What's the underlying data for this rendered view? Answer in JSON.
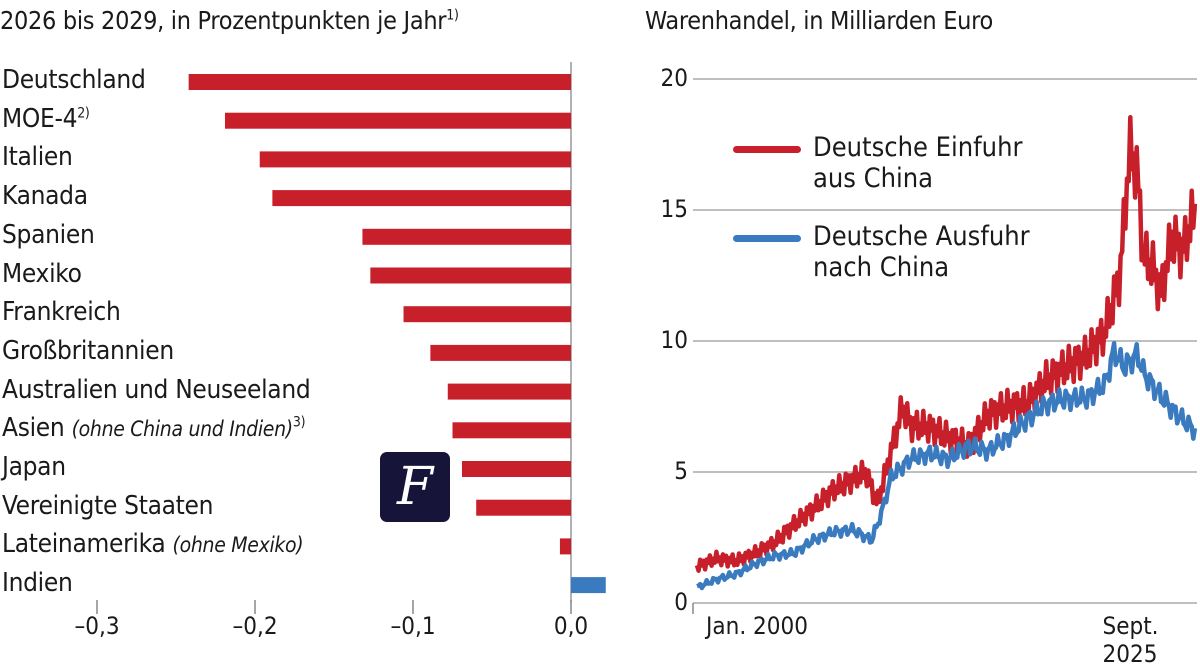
{
  "left_chart": {
    "title": "2026 bis 2029, in Prozentpunkten je Jahr",
    "title_footnote": "1)",
    "type": "bar",
    "orientation": "horizontal",
    "negative_color": "#c8202b",
    "positive_color": "#3a7abf",
    "xlim": [
      -0.3,
      0.03
    ],
    "ticks": [
      -0.3,
      -0.2,
      -0.1,
      0.0
    ],
    "tick_labels": [
      "–0,3",
      "–0,2",
      "–0,1",
      "0,0"
    ],
    "rows": [
      {
        "label": "Deutschland",
        "note": "",
        "footnote": "",
        "value": -0.242
      },
      {
        "label": "MOE-4",
        "note": "",
        "footnote": "2)",
        "value": -0.219
      },
      {
        "label": "Italien",
        "note": "",
        "footnote": "",
        "value": -0.197
      },
      {
        "label": "Kanada",
        "note": "",
        "footnote": "",
        "value": -0.189
      },
      {
        "label": "Spanien",
        "note": "",
        "footnote": "",
        "value": -0.132
      },
      {
        "label": "Mexiko",
        "note": "",
        "footnote": "",
        "value": -0.127
      },
      {
        "label": "Frankreich",
        "note": "",
        "footnote": "",
        "value": -0.106
      },
      {
        "label": "Großbritannien",
        "note": "",
        "footnote": "",
        "value": -0.089
      },
      {
        "label": "Australien und Neuseeland",
        "note": "",
        "footnote": "",
        "value": -0.078
      },
      {
        "label": "Asien",
        "note": "(ohne China und Indien)",
        "footnote": "3)",
        "value": -0.075
      },
      {
        "label": "Japan",
        "note": "",
        "footnote": "",
        "value": -0.069
      },
      {
        "label": "Vereinigte Staaten",
        "note": "",
        "footnote": "",
        "value": -0.06
      },
      {
        "label": "Lateinamerika",
        "note": "(ohne Mexiko)",
        "footnote": "",
        "value": -0.007
      },
      {
        "label": "Indien",
        "note": "",
        "footnote": "",
        "value": 0.022
      }
    ]
  },
  "logo": {
    "letter": "F"
  },
  "chart_data": {
    "type": "line",
    "title": "Warenhandel, in Milliarden Euro",
    "ylim": [
      0,
      20
    ],
    "yticks": [
      0,
      5,
      10,
      15,
      20
    ],
    "xlim": [
      2000.0,
      2025.67
    ],
    "xtick_labels": [
      "Jan. 2000",
      "Sept. 2025"
    ],
    "grid": true,
    "legend_position": "top-left",
    "series": [
      {
        "name_line1": "Deutsche Einfuhr",
        "name_line2": "aus China",
        "color": "#c8202b",
        "x": [
          2000,
          2001,
          2002,
          2003,
          2004,
          2005,
          2006,
          2007,
          2008,
          2008.7,
          2009.3,
          2009.8,
          2010.6,
          2011,
          2012,
          2013,
          2014,
          2015,
          2016,
          2017,
          2018,
          2019,
          2020,
          2021,
          2021.8,
          2022.3,
          2022.7,
          2023.0,
          2023.5,
          2023.9,
          2024.5,
          2025,
          2025.67
        ],
        "y": [
          1.4,
          1.7,
          1.6,
          1.9,
          2.3,
          3.0,
          3.6,
          4.3,
          4.7,
          5.0,
          3.8,
          5.2,
          7.5,
          6.8,
          6.7,
          6.3,
          6.0,
          7.2,
          7.5,
          7.6,
          8.5,
          9.0,
          9.4,
          10.3,
          12.5,
          17.3,
          16.4,
          13.3,
          12.8,
          11.8,
          14.0,
          13.4,
          15.0
        ]
      },
      {
        "name_line1": "Deutsche Ausfuhr",
        "name_line2": "nach China",
        "color": "#3a7abf",
        "x": [
          2000,
          2001,
          2002,
          2003,
          2004,
          2005,
          2006,
          2007,
          2008,
          2009,
          2009.5,
          2010,
          2011,
          2012,
          2013,
          2014,
          2015,
          2016,
          2017,
          2018,
          2019,
          2020,
          2021,
          2021.5,
          2022,
          2022.7,
          2023,
          2024,
          2025,
          2025.67
        ],
        "y": [
          0.6,
          0.9,
          1.1,
          1.5,
          1.8,
          1.9,
          2.4,
          2.7,
          2.8,
          2.4,
          3.4,
          4.8,
          5.5,
          5.7,
          5.5,
          6.0,
          5.8,
          6.3,
          7.0,
          7.6,
          7.8,
          7.8,
          8.3,
          9.6,
          9.0,
          9.5,
          8.8,
          7.8,
          7.0,
          6.6
        ]
      }
    ]
  }
}
